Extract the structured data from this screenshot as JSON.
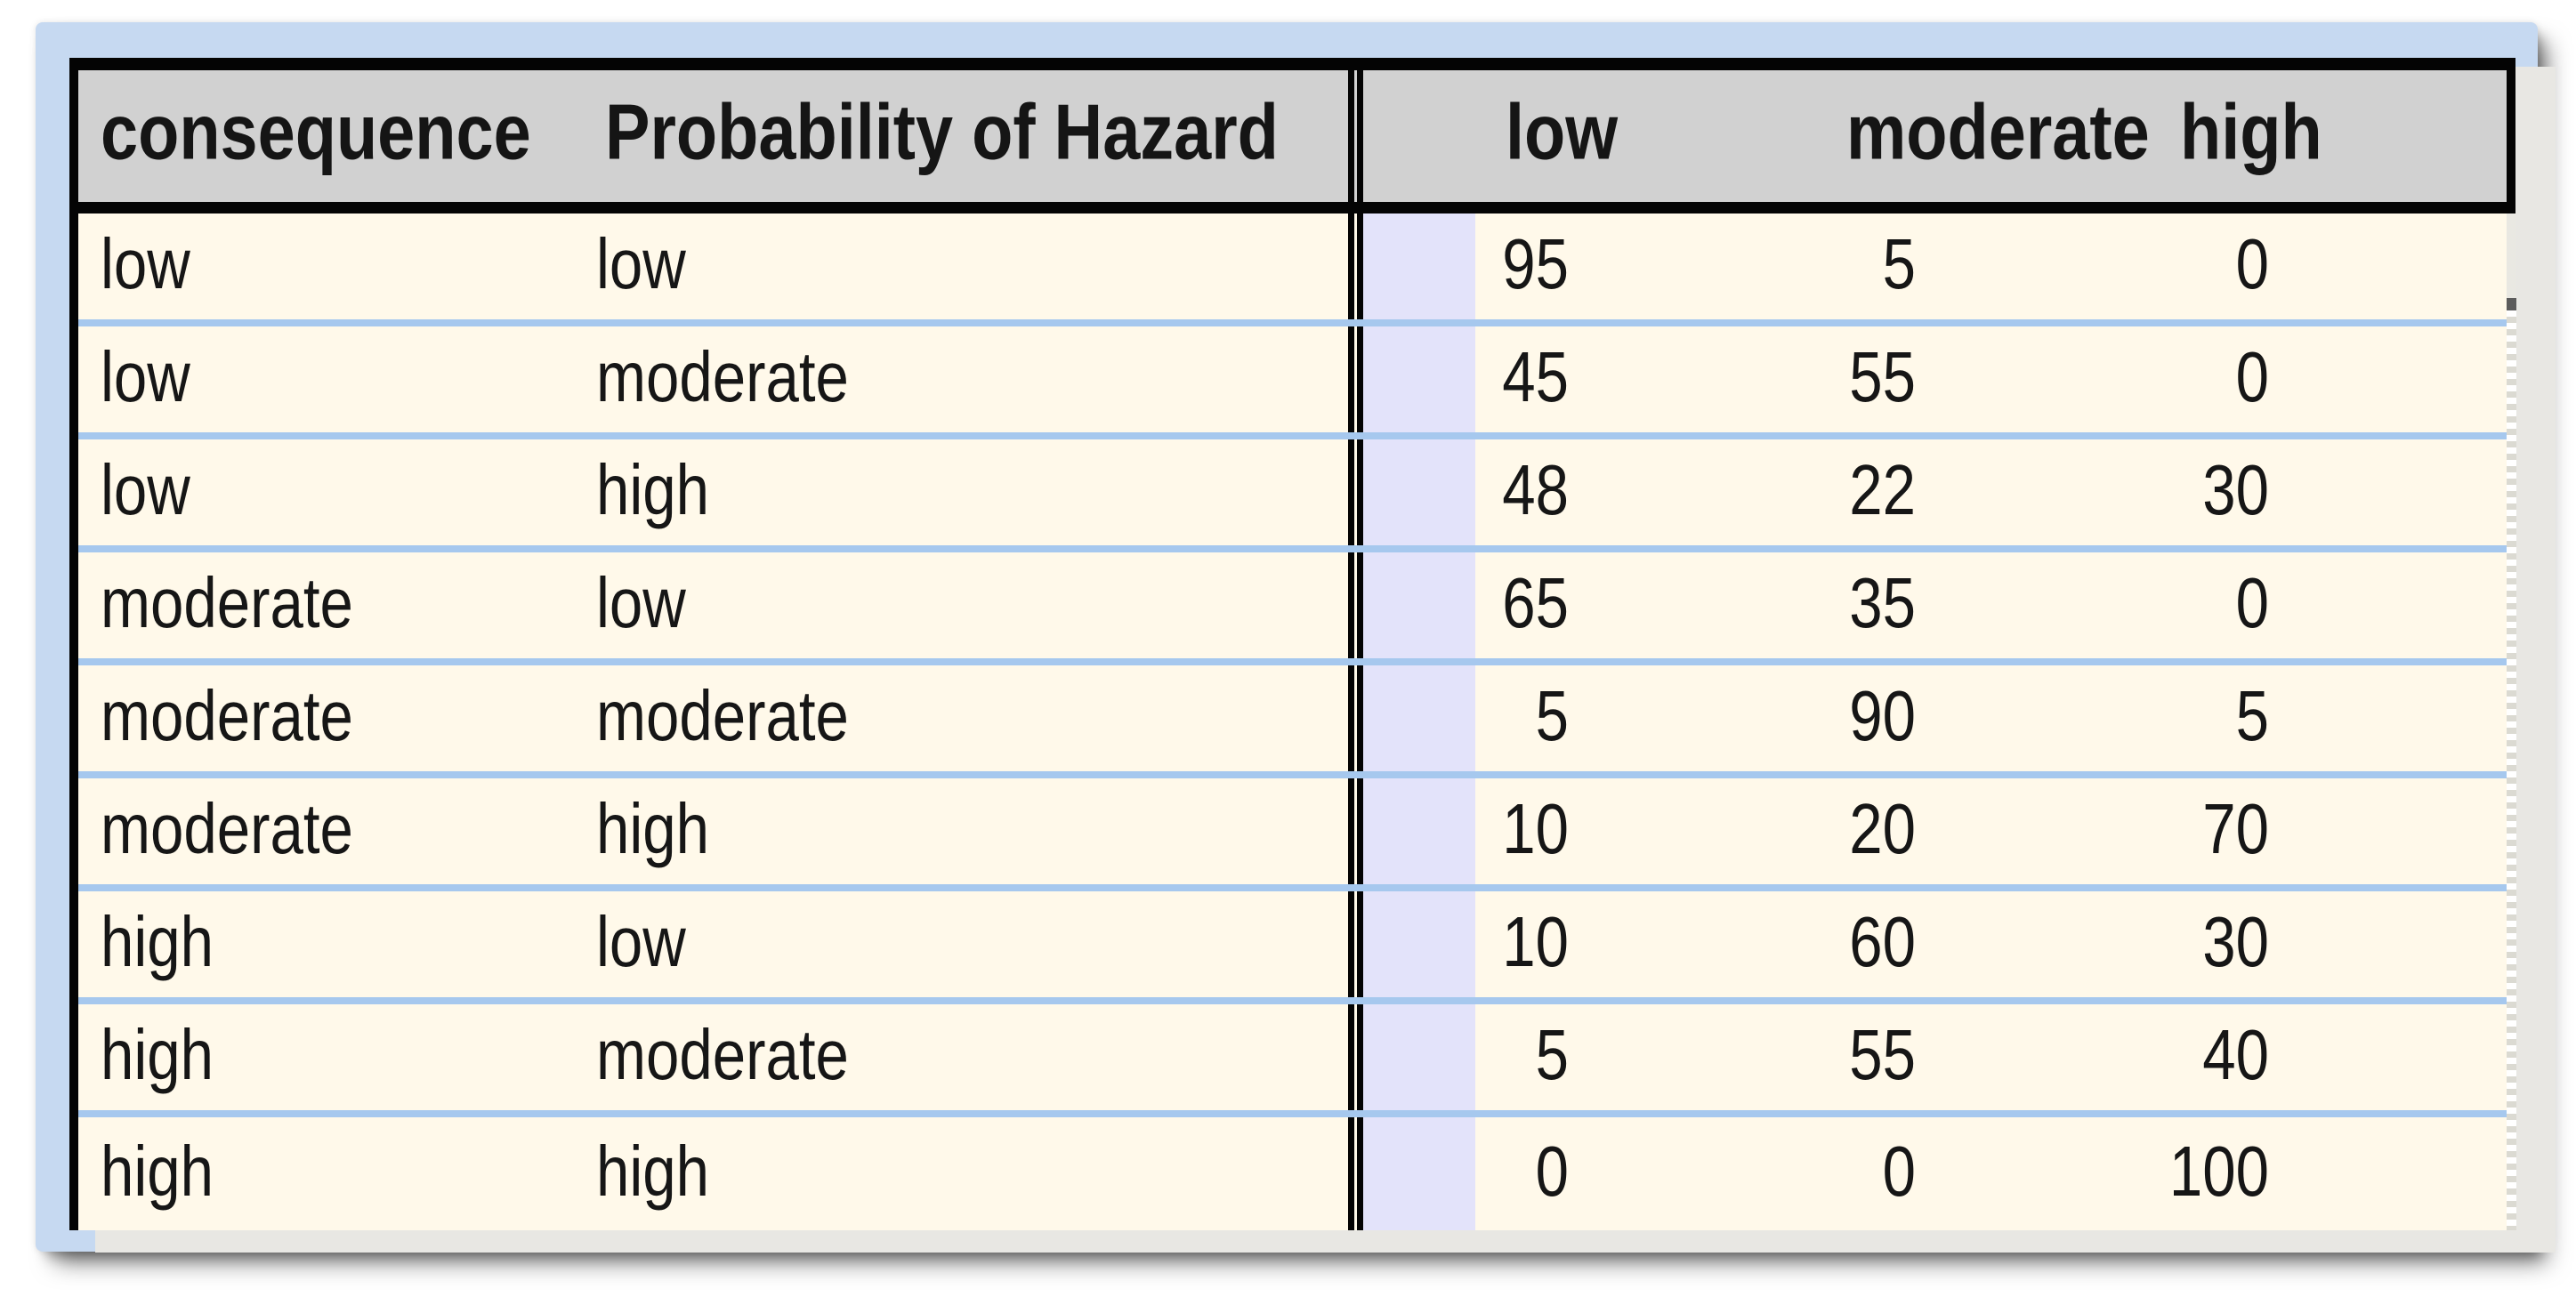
{
  "table": {
    "header": {
      "consequence_label": "consequence",
      "probability_label": "Probability of Hazard",
      "state_labels": [
        "low",
        "moderate",
        "high"
      ]
    },
    "rows": [
      {
        "consequence": "low",
        "probability": "low",
        "values": [
          "95",
          "5",
          "0"
        ]
      },
      {
        "consequence": "low",
        "probability": "moderate",
        "values": [
          "45",
          "55",
          "0"
        ]
      },
      {
        "consequence": "low",
        "probability": "high",
        "values": [
          "48",
          "22",
          "30"
        ]
      },
      {
        "consequence": "moderate",
        "probability": "low",
        "values": [
          "65",
          "35",
          "0"
        ]
      },
      {
        "consequence": "moderate",
        "probability": "moderate",
        "values": [
          "5",
          "90",
          "5"
        ]
      },
      {
        "consequence": "moderate",
        "probability": "high",
        "values": [
          "10",
          "20",
          "70"
        ]
      },
      {
        "consequence": "high",
        "probability": "low",
        "values": [
          "10",
          "60",
          "30"
        ]
      },
      {
        "consequence": "high",
        "probability": "moderate",
        "values": [
          "5",
          "55",
          "40"
        ]
      },
      {
        "consequence": "high",
        "probability": "high",
        "values": [
          "0",
          "0",
          "100"
        ]
      }
    ]
  },
  "colors": {
    "frame_blue": "#C6D9F1",
    "panel_gray": "#E8E7E3",
    "header_gray": "#D1D1D1",
    "row_cream": "#FFF9EA",
    "gutter_lavender": "#E3E3FA",
    "row_separator_blue": "#A6C8EE",
    "table_border_black": "#040404",
    "scroll_thumb_gray": "#5C5C5C"
  }
}
